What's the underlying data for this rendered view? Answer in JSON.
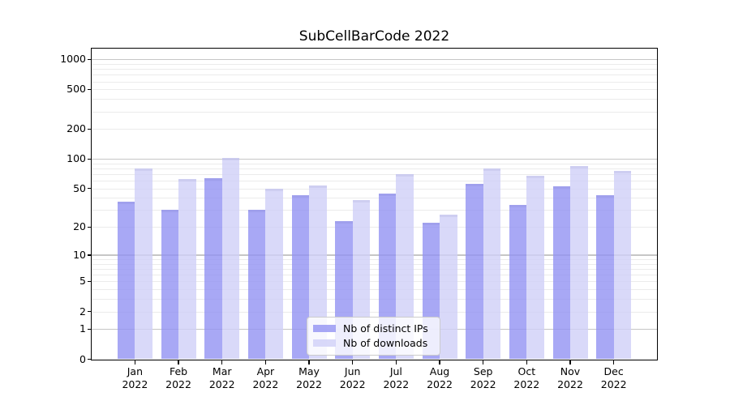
{
  "title": "SubCellBarCode 2022",
  "legend": {
    "items": [
      {
        "label": "Nb of distinct IPs",
        "color": "rgba(146,146,243,0.8)"
      },
      {
        "label": "Nb of downloads",
        "color": "rgba(208,208,248,0.8)"
      }
    ],
    "position": "lower center"
  },
  "colors": {
    "bar_distinct_ips": "rgba(146,146,243,0.8)",
    "bar_downloads": "rgba(208,208,248,0.8)",
    "grid_major": "#c6c6c6",
    "grid_minor": "#ebebeb",
    "axis_frame": "#000000",
    "background": "#ffffff"
  },
  "chart_data": {
    "type": "bar",
    "title": "SubCellBarCode 2022",
    "categories": [
      "Jan 2022",
      "Feb 2022",
      "Mar 2022",
      "Apr 2022",
      "May 2022",
      "Jun 2022",
      "Jul 2022",
      "Aug 2022",
      "Sep 2022",
      "Oct 2022",
      "Nov 2022",
      "Dec 2022"
    ],
    "series": [
      {
        "name": "Nb of distinct IPs",
        "values": [
          37,
          30,
          64,
          30,
          43,
          23,
          44,
          22,
          56,
          34,
          53,
          43
        ]
      },
      {
        "name": "Nb of downloads",
        "values": [
          80,
          62,
          103,
          50,
          54,
          38,
          70,
          27,
          80,
          67,
          85,
          76
        ]
      }
    ],
    "xlabel": "",
    "ylabel": "",
    "yscale": "log1p",
    "ylim": [
      0,
      1270
    ],
    "y_ticks": [
      0,
      1,
      2,
      5,
      10,
      20,
      50,
      100,
      200,
      500,
      1000
    ],
    "y_major_gridlines": [
      1,
      10,
      100,
      1000
    ],
    "y_minor_gridlines": [
      2,
      3,
      4,
      5,
      6,
      7,
      8,
      9,
      20,
      30,
      40,
      50,
      60,
      70,
      80,
      90,
      200,
      300,
      400,
      500,
      600,
      700,
      800,
      900
    ],
    "grid": true,
    "legend_position": "lower center"
  }
}
